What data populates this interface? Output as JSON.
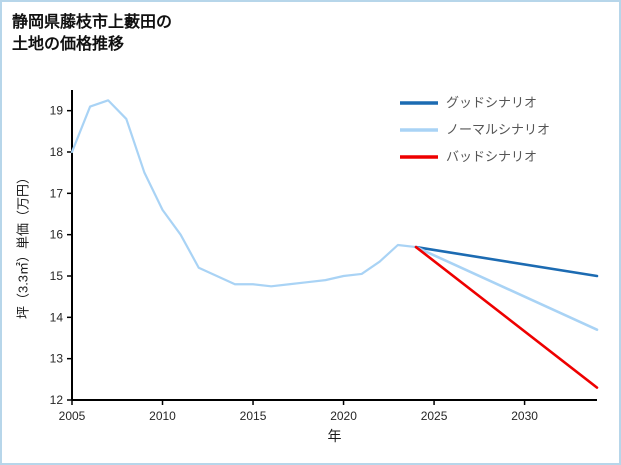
{
  "page": {
    "title_line1": "静岡県藤枝市上藪田の",
    "title_line2": "土地の価格推移",
    "border_color": "#b7d6ea",
    "background_color": "#ffffff"
  },
  "chart_data": {
    "type": "line",
    "title": "静岡県藤枝市上藪田の土地の価格推移",
    "xlabel": "年",
    "ylabel": "坪（3.3㎡）単価（万円）",
    "xlim": [
      2005,
      2034
    ],
    "ylim": [
      12,
      19.5
    ],
    "xticks": [
      2005,
      2010,
      2015,
      2020,
      2025,
      2030
    ],
    "yticks": [
      12,
      13,
      14,
      15,
      16,
      17,
      18,
      19
    ],
    "grid": false,
    "legend_position": "upper right",
    "axis_color": "#000000",
    "series": [
      {
        "id": "actual",
        "label": "",
        "color": "#a9d3f5",
        "width": 2.2,
        "x": [
          2005,
          2006,
          2007,
          2008,
          2009,
          2010,
          2011,
          2012,
          2013,
          2014,
          2015,
          2016,
          2017,
          2018,
          2019,
          2020,
          2021,
          2022,
          2023,
          2024
        ],
        "y": [
          18.0,
          19.1,
          19.25,
          18.8,
          17.5,
          16.6,
          16.0,
          15.2,
          15.0,
          14.8,
          14.8,
          14.75,
          14.8,
          14.85,
          14.9,
          15.0,
          15.05,
          15.35,
          15.75,
          15.7
        ]
      },
      {
        "id": "good-scenario",
        "label": "グッドシナリオ",
        "color": "#1c6bb2",
        "width": 2.6,
        "x": [
          2024,
          2034
        ],
        "y": [
          15.7,
          15.0
        ]
      },
      {
        "id": "normal-scenario",
        "label": "ノーマルシナリオ",
        "color": "#a9d3f5",
        "width": 2.6,
        "x": [
          2024,
          2034
        ],
        "y": [
          15.7,
          13.7
        ]
      },
      {
        "id": "bad-scenario",
        "label": "バッドシナリオ",
        "color": "#ee0000",
        "width": 2.6,
        "x": [
          2024,
          2034
        ],
        "y": [
          15.7,
          12.3
        ]
      }
    ]
  }
}
